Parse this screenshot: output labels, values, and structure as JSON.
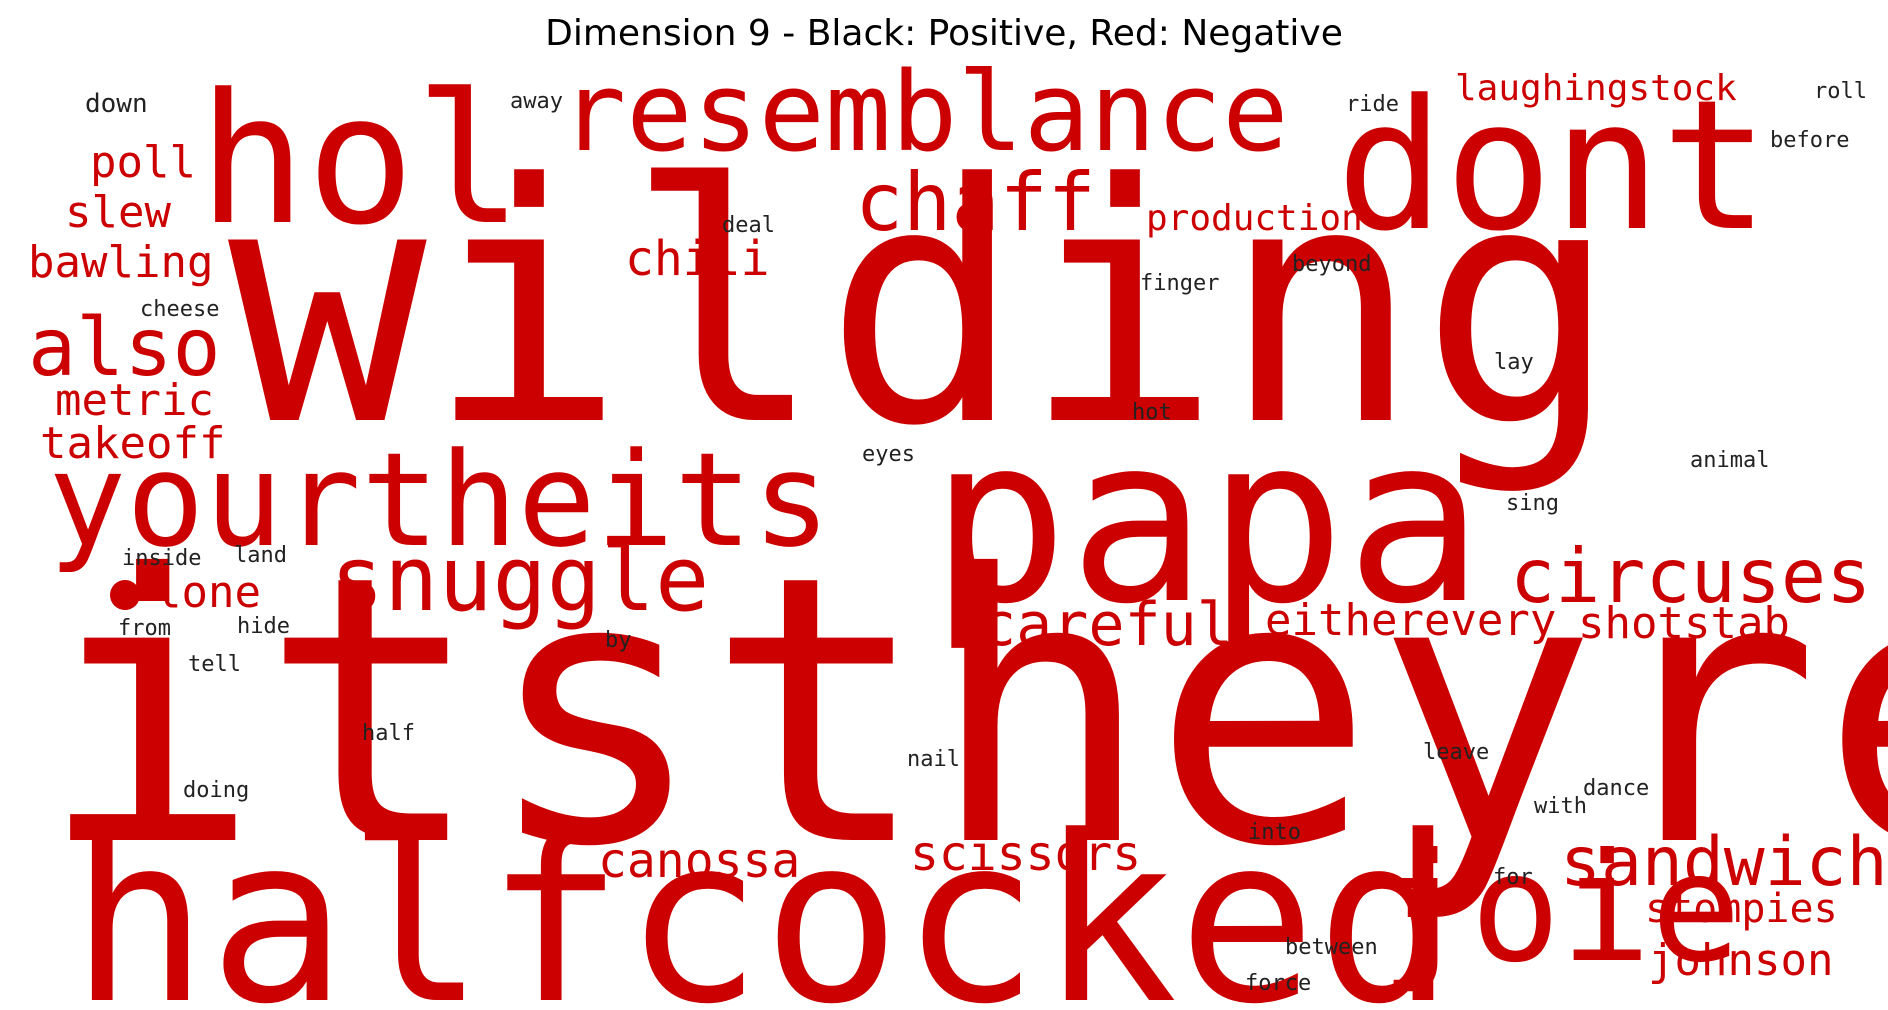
{
  "title": "Dimension 9 - Black: Positive, Red: Negative",
  "colors": {
    "positive": "#222222",
    "negative": "#cc0000",
    "background": "#ffffff"
  },
  "words": [
    {
      "text": "wilding",
      "sign": "negative"
    },
    {
      "text": "itstheyre",
      "sign": "negative"
    },
    {
      "text": "papa",
      "sign": "negative"
    },
    {
      "text": "halfcocked",
      "sign": "negative"
    },
    {
      "text": "hol",
      "sign": "negative"
    },
    {
      "text": "dont",
      "sign": "negative"
    },
    {
      "text": "yourtheits",
      "sign": "negative"
    },
    {
      "text": "resemblance",
      "sign": "negative"
    },
    {
      "text": "joie",
      "sign": "negative"
    },
    {
      "text": "snuggle",
      "sign": "negative"
    },
    {
      "text": "also",
      "sign": "negative"
    },
    {
      "text": "chaff",
      "sign": "negative"
    },
    {
      "text": "circuses",
      "sign": "negative"
    },
    {
      "text": "sandwich",
      "sign": "negative"
    },
    {
      "text": "careful",
      "sign": "negative"
    },
    {
      "text": "eitherevery",
      "sign": "negative"
    },
    {
      "text": "shotstab",
      "sign": "negative"
    },
    {
      "text": "scissors",
      "sign": "negative"
    },
    {
      "text": "canossa",
      "sign": "negative"
    },
    {
      "text": "stompies",
      "sign": "negative"
    },
    {
      "text": "johnson",
      "sign": "negative"
    },
    {
      "text": "laughingstock",
      "sign": "negative"
    },
    {
      "text": "production",
      "sign": "negative"
    },
    {
      "text": "chili",
      "sign": "negative"
    },
    {
      "text": "poll",
      "sign": "negative"
    },
    {
      "text": "slew",
      "sign": "negative"
    },
    {
      "text": "bawling",
      "sign": "negative"
    },
    {
      "text": "metric",
      "sign": "negative"
    },
    {
      "text": "takeoff",
      "sign": "negative"
    },
    {
      "text": "lone",
      "sign": "negative"
    },
    {
      "text": "down",
      "sign": "positive"
    },
    {
      "text": "away",
      "sign": "positive"
    },
    {
      "text": "ride",
      "sign": "positive"
    },
    {
      "text": "roll",
      "sign": "positive"
    },
    {
      "text": "before",
      "sign": "positive"
    },
    {
      "text": "deal",
      "sign": "positive"
    },
    {
      "text": "beyond",
      "sign": "positive"
    },
    {
      "text": "finger",
      "sign": "positive"
    },
    {
      "text": "cheese",
      "sign": "positive"
    },
    {
      "text": "lay",
      "sign": "positive"
    },
    {
      "text": "hot",
      "sign": "positive"
    },
    {
      "text": "eyes",
      "sign": "positive"
    },
    {
      "text": "animal",
      "sign": "positive"
    },
    {
      "text": "sing",
      "sign": "positive"
    },
    {
      "text": "inside",
      "sign": "positive"
    },
    {
      "text": "land",
      "sign": "positive"
    },
    {
      "text": "from",
      "sign": "positive"
    },
    {
      "text": "hide",
      "sign": "positive"
    },
    {
      "text": "by",
      "sign": "positive"
    },
    {
      "text": "tell",
      "sign": "positive"
    },
    {
      "text": "half",
      "sign": "positive"
    },
    {
      "text": "nail",
      "sign": "positive"
    },
    {
      "text": "leave",
      "sign": "positive"
    },
    {
      "text": "doing",
      "sign": "positive"
    },
    {
      "text": "dance",
      "sign": "positive"
    },
    {
      "text": "with",
      "sign": "positive"
    },
    {
      "text": "into",
      "sign": "positive"
    },
    {
      "text": "for",
      "sign": "positive"
    },
    {
      "text": "between",
      "sign": "positive"
    },
    {
      "text": "force",
      "sign": "positive"
    }
  ]
}
